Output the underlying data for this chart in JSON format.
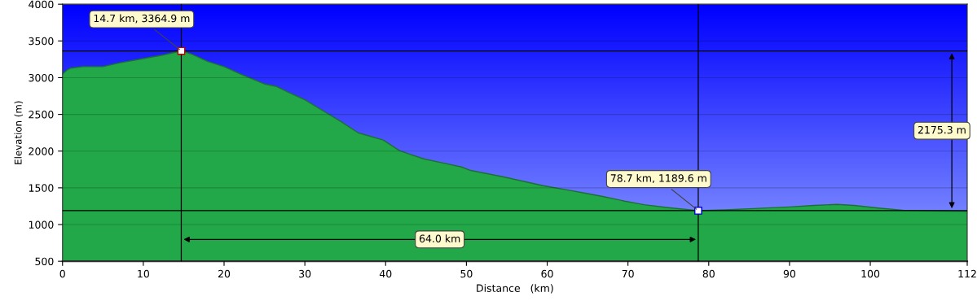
{
  "chart_data": {
    "type": "area",
    "xlabel": "Distance   (km)",
    "ylabel": "Elevation (m)",
    "x": [
      0,
      0.5,
      1,
      2.5,
      5,
      7,
      10,
      12.5,
      14.7,
      16,
      18,
      20,
      22,
      24,
      25,
      26.5,
      28,
      30,
      32.6,
      34.5,
      36.6,
      39.7,
      41.7,
      44.7,
      47,
      49.4,
      50.4,
      54.5,
      57,
      59.5,
      62,
      64.6,
      67,
      69.6,
      72,
      75,
      78.7,
      82,
      85,
      90,
      93,
      95.9,
      98,
      101,
      104,
      108,
      112
    ],
    "series": [
      {
        "color": "#22a848",
        "values": [
          3050,
          3100,
          3130,
          3150,
          3150,
          3200,
          3260,
          3310,
          3364.9,
          3320,
          3220,
          3150,
          3050,
          2960,
          2914,
          2880,
          2800,
          2700,
          2526,
          2400,
          2249,
          2150,
          2006,
          1895,
          1840,
          1784,
          1740,
          1651,
          1590,
          1529,
          1480,
          1430,
          1380,
          1319,
          1270,
          1230,
          1189.6,
          1200,
          1215,
          1240,
          1260,
          1275,
          1260,
          1225,
          1195,
          1185,
          1180
        ]
      }
    ],
    "xlim": [
      0,
      112
    ],
    "xticks": [
      0,
      10,
      20,
      30,
      40,
      50,
      60,
      70,
      80,
      90,
      100,
      112
    ],
    "ylim": [
      500,
      4000
    ],
    "yticks": [
      500,
      1000,
      1500,
      2000,
      2500,
      3000,
      3500,
      4000
    ],
    "grid": "y",
    "ref_lines": [
      {
        "axis": "x",
        "value": 14.7
      },
      {
        "axis": "x",
        "value": 78.7
      },
      {
        "axis": "y",
        "value": 3364.9
      },
      {
        "axis": "y",
        "value": 1189.6
      }
    ],
    "annotations": [
      {
        "text": "14.7 km, 3364.9 m",
        "x": 14.7,
        "y": 3364.9
      },
      {
        "text": "78.7 km, 1189.6 m",
        "x": 78.7,
        "y": 1189.6
      },
      "64.0 km",
      "2175.3 m"
    ]
  }
}
